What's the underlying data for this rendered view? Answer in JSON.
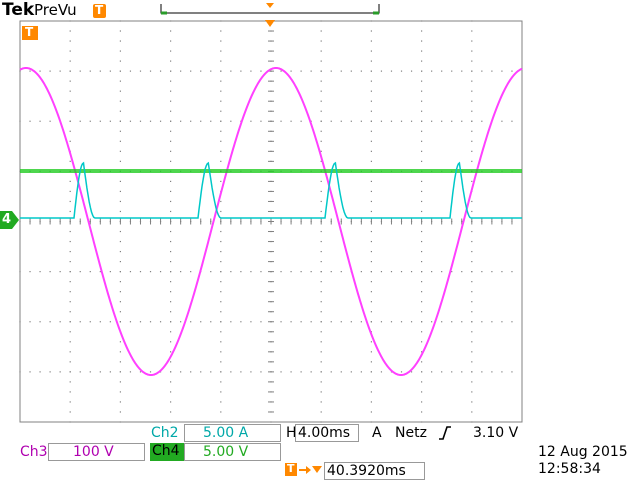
{
  "header": {
    "brand": "Tek",
    "mode": "PreVu"
  },
  "markers": {
    "trigger_marker": "T",
    "ch4_ground": "4"
  },
  "colors": {
    "ch2": "#00c8c8",
    "ch3": "#ff40ff",
    "ch4": "#22cc22",
    "accent": "#ff8800",
    "grid": "#808080"
  },
  "readouts": {
    "ch2_label": "Ch2",
    "ch2_scale": "5.00 A",
    "ch3_label": "Ch3",
    "ch3_scale": "100 V",
    "ch4_label": "Ch4",
    "ch4_scale": "5.00 V",
    "horizontal": "H",
    "timebase": "4.00ms",
    "acq_ch": "A",
    "trigger_source": "Netz",
    "trigger_slope_icon": "rising-edge-icon",
    "trigger_level": "3.10 V",
    "trigger_position": "40.3920ms",
    "date": "12 Aug 2015",
    "time": "12:58:34"
  }
}
